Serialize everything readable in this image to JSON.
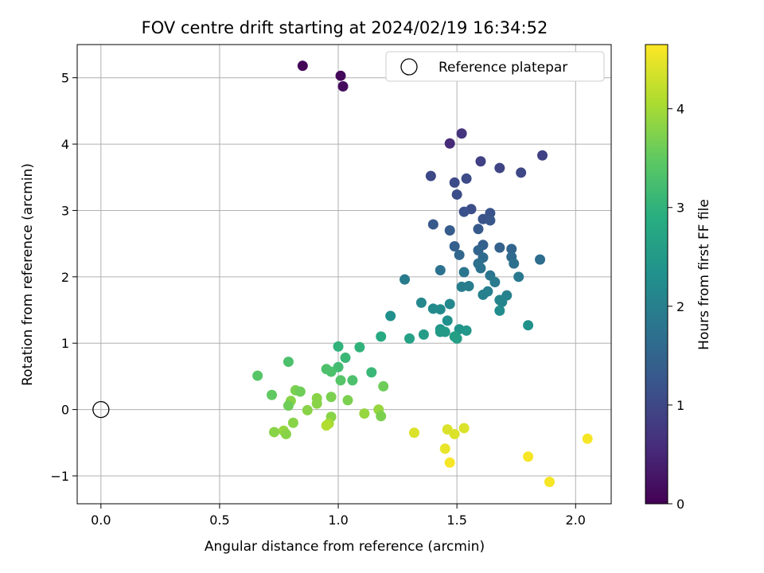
{
  "chart_data": {
    "type": "scatter",
    "title": "FOV centre drift starting at 2024/02/19 16:34:52",
    "xlabel": "Angular distance from reference (arcmin)",
    "ylabel": "Rotation from reference (arcmin)",
    "xlim": [
      -0.1,
      2.15
    ],
    "ylim": [
      -1.42,
      5.5
    ],
    "xticks": [
      0.0,
      0.5,
      1.0,
      1.5,
      2.0
    ],
    "xtick_labels": [
      "0.0",
      "0.5",
      "1.0",
      "1.5",
      "2.0"
    ],
    "yticks": [
      -1,
      0,
      1,
      2,
      3,
      4,
      5
    ],
    "ytick_labels": [
      "−1",
      "0",
      "1",
      "2",
      "3",
      "4",
      "5"
    ],
    "grid": true,
    "legend": {
      "position": "top-right",
      "entries": [
        {
          "label": "Reference platepar",
          "marker": "open-circle"
        }
      ]
    },
    "reference_point": {
      "x": 0.0,
      "y": 0.0
    },
    "colorbar": {
      "label": "Hours from first FF file",
      "colormap": "viridis",
      "range": [
        0,
        4.65
      ],
      "ticks": [
        0,
        1,
        2,
        3,
        4
      ],
      "tick_labels": [
        "0",
        "1",
        "2",
        "3",
        "4"
      ]
    },
    "points": [
      {
        "x": 0.85,
        "y": 5.18,
        "c": 0.05
      },
      {
        "x": 1.01,
        "y": 5.03,
        "c": 0.1
      },
      {
        "x": 1.02,
        "y": 4.87,
        "c": 0.15
      },
      {
        "x": 1.52,
        "y": 4.16,
        "c": 0.7
      },
      {
        "x": 1.47,
        "y": 4.01,
        "c": 0.55
      },
      {
        "x": 1.86,
        "y": 3.83,
        "c": 0.9
      },
      {
        "x": 1.6,
        "y": 3.74,
        "c": 0.9
      },
      {
        "x": 1.68,
        "y": 3.64,
        "c": 0.95
      },
      {
        "x": 1.77,
        "y": 3.57,
        "c": 1.0
      },
      {
        "x": 1.39,
        "y": 3.52,
        "c": 1.0
      },
      {
        "x": 1.54,
        "y": 3.48,
        "c": 1.05
      },
      {
        "x": 1.49,
        "y": 3.42,
        "c": 1.05
      },
      {
        "x": 1.5,
        "y": 3.24,
        "c": 1.1
      },
      {
        "x": 1.56,
        "y": 3.02,
        "c": 1.1
      },
      {
        "x": 1.53,
        "y": 2.98,
        "c": 1.15
      },
      {
        "x": 1.64,
        "y": 2.96,
        "c": 1.2
      },
      {
        "x": 1.61,
        "y": 2.87,
        "c": 1.2
      },
      {
        "x": 1.64,
        "y": 2.85,
        "c": 1.25
      },
      {
        "x": 1.4,
        "y": 2.79,
        "c": 1.3
      },
      {
        "x": 1.59,
        "y": 2.72,
        "c": 1.3
      },
      {
        "x": 1.47,
        "y": 2.7,
        "c": 1.35
      },
      {
        "x": 1.61,
        "y": 2.48,
        "c": 1.4
      },
      {
        "x": 1.49,
        "y": 2.46,
        "c": 1.4
      },
      {
        "x": 1.68,
        "y": 2.44,
        "c": 1.45
      },
      {
        "x": 1.73,
        "y": 2.42,
        "c": 1.5
      },
      {
        "x": 1.59,
        "y": 2.4,
        "c": 1.5
      },
      {
        "x": 1.51,
        "y": 2.33,
        "c": 1.55
      },
      {
        "x": 1.73,
        "y": 2.3,
        "c": 1.6
      },
      {
        "x": 1.61,
        "y": 2.29,
        "c": 1.6
      },
      {
        "x": 1.85,
        "y": 2.26,
        "c": 1.65
      },
      {
        "x": 1.74,
        "y": 2.2,
        "c": 1.7
      },
      {
        "x": 1.59,
        "y": 2.2,
        "c": 1.7
      },
      {
        "x": 1.6,
        "y": 2.13,
        "c": 1.75
      },
      {
        "x": 1.43,
        "y": 2.1,
        "c": 1.75
      },
      {
        "x": 1.53,
        "y": 2.07,
        "c": 1.8
      },
      {
        "x": 1.64,
        "y": 2.02,
        "c": 1.8
      },
      {
        "x": 1.76,
        "y": 2.0,
        "c": 1.85
      },
      {
        "x": 1.28,
        "y": 1.96,
        "c": 1.9
      },
      {
        "x": 1.66,
        "y": 1.92,
        "c": 1.9
      },
      {
        "x": 1.55,
        "y": 1.86,
        "c": 1.95
      },
      {
        "x": 1.52,
        "y": 1.85,
        "c": 1.95
      },
      {
        "x": 1.63,
        "y": 1.78,
        "c": 2.0
      },
      {
        "x": 1.61,
        "y": 1.73,
        "c": 2.0
      },
      {
        "x": 1.71,
        "y": 1.72,
        "c": 2.05
      },
      {
        "x": 1.68,
        "y": 1.65,
        "c": 2.1
      },
      {
        "x": 1.69,
        "y": 1.62,
        "c": 2.1
      },
      {
        "x": 1.35,
        "y": 1.61,
        "c": 2.15
      },
      {
        "x": 1.47,
        "y": 1.59,
        "c": 2.15
      },
      {
        "x": 1.4,
        "y": 1.52,
        "c": 2.2
      },
      {
        "x": 1.43,
        "y": 1.51,
        "c": 2.2
      },
      {
        "x": 1.68,
        "y": 1.49,
        "c": 2.25
      },
      {
        "x": 1.22,
        "y": 1.41,
        "c": 2.3
      },
      {
        "x": 1.46,
        "y": 1.34,
        "c": 2.3
      },
      {
        "x": 1.8,
        "y": 1.27,
        "c": 2.35
      },
      {
        "x": 1.51,
        "y": 1.21,
        "c": 2.4
      },
      {
        "x": 1.43,
        "y": 1.21,
        "c": 2.4
      },
      {
        "x": 1.54,
        "y": 1.19,
        "c": 2.45
      },
      {
        "x": 1.45,
        "y": 1.17,
        "c": 2.5
      },
      {
        "x": 1.43,
        "y": 1.17,
        "c": 2.5
      },
      {
        "x": 1.36,
        "y": 1.13,
        "c": 2.55
      },
      {
        "x": 1.49,
        "y": 1.1,
        "c": 2.6
      },
      {
        "x": 1.5,
        "y": 1.07,
        "c": 2.6
      },
      {
        "x": 1.3,
        "y": 1.07,
        "c": 2.65
      },
      {
        "x": 1.18,
        "y": 1.1,
        "c": 2.8
      },
      {
        "x": 1.0,
        "y": 0.95,
        "c": 3.0
      },
      {
        "x": 1.09,
        "y": 0.94,
        "c": 3.0
      },
      {
        "x": 1.03,
        "y": 0.78,
        "c": 3.1
      },
      {
        "x": 0.79,
        "y": 0.72,
        "c": 3.3
      },
      {
        "x": 1.0,
        "y": 0.64,
        "c": 3.2
      },
      {
        "x": 0.95,
        "y": 0.61,
        "c": 3.3
      },
      {
        "x": 0.97,
        "y": 0.57,
        "c": 3.3
      },
      {
        "x": 1.14,
        "y": 0.56,
        "c": 3.1
      },
      {
        "x": 0.66,
        "y": 0.51,
        "c": 3.4
      },
      {
        "x": 1.01,
        "y": 0.44,
        "c": 3.4
      },
      {
        "x": 1.06,
        "y": 0.44,
        "c": 3.3
      },
      {
        "x": 1.19,
        "y": 0.35,
        "c": 3.6
      },
      {
        "x": 0.82,
        "y": 0.29,
        "c": 3.7
      },
      {
        "x": 0.84,
        "y": 0.27,
        "c": 3.6
      },
      {
        "x": 0.72,
        "y": 0.22,
        "c": 3.5
      },
      {
        "x": 0.97,
        "y": 0.19,
        "c": 3.7
      },
      {
        "x": 0.91,
        "y": 0.17,
        "c": 3.8
      },
      {
        "x": 1.04,
        "y": 0.14,
        "c": 3.7
      },
      {
        "x": 0.8,
        "y": 0.13,
        "c": 3.8
      },
      {
        "x": 0.91,
        "y": 0.09,
        "c": 3.8
      },
      {
        "x": 0.79,
        "y": 0.06,
        "c": 3.6
      },
      {
        "x": 0.87,
        "y": -0.01,
        "c": 3.8
      },
      {
        "x": 1.17,
        "y": 0.0,
        "c": 3.9
      },
      {
        "x": 1.11,
        "y": -0.06,
        "c": 3.9
      },
      {
        "x": 1.18,
        "y": -0.1,
        "c": 3.7
      },
      {
        "x": 0.97,
        "y": -0.11,
        "c": 3.8
      },
      {
        "x": 0.81,
        "y": -0.2,
        "c": 3.8
      },
      {
        "x": 0.96,
        "y": -0.21,
        "c": 4.0
      },
      {
        "x": 0.95,
        "y": -0.24,
        "c": 4.1
      },
      {
        "x": 0.77,
        "y": -0.32,
        "c": 3.9
      },
      {
        "x": 0.73,
        "y": -0.34,
        "c": 3.8
      },
      {
        "x": 0.78,
        "y": -0.37,
        "c": 3.8
      },
      {
        "x": 1.53,
        "y": -0.28,
        "c": 4.4
      },
      {
        "x": 1.46,
        "y": -0.3,
        "c": 4.4
      },
      {
        "x": 1.32,
        "y": -0.35,
        "c": 4.4
      },
      {
        "x": 1.49,
        "y": -0.37,
        "c": 4.4
      },
      {
        "x": 2.05,
        "y": -0.44,
        "c": 4.6
      },
      {
        "x": 1.45,
        "y": -0.59,
        "c": 4.5
      },
      {
        "x": 1.8,
        "y": -0.71,
        "c": 4.6
      },
      {
        "x": 1.47,
        "y": -0.8,
        "c": 4.6
      },
      {
        "x": 1.89,
        "y": -1.09,
        "c": 4.6
      }
    ]
  }
}
